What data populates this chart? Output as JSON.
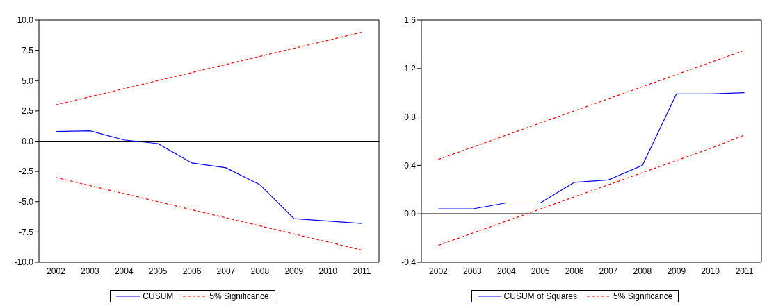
{
  "chart_data": [
    {
      "type": "line",
      "categories": [
        "2002",
        "2003",
        "2004",
        "2005",
        "2006",
        "2007",
        "2008",
        "2009",
        "2010",
        "2011"
      ],
      "series": [
        {
          "name": "CUSUM",
          "color": "#0000ff",
          "line_style": "solid",
          "values": [
            0.8,
            0.85,
            0.1,
            -0.2,
            -1.8,
            -2.2,
            -3.6,
            -6.4,
            -6.6,
            -6.8
          ]
        },
        {
          "name": "5% Significance",
          "color": "#ff0000",
          "line_style": "dashed",
          "values": [
            3.0,
            3.67,
            4.33,
            5.0,
            5.67,
            6.33,
            7.0,
            7.67,
            8.33,
            9.0
          ]
        },
        {
          "color": "#ff0000",
          "line_style": "dashed",
          "values": [
            -3.0,
            -3.67,
            -4.33,
            -5.0,
            -5.67,
            -6.33,
            -7.0,
            -7.67,
            -8.33,
            -9.0
          ]
        }
      ],
      "ylim": [
        -10,
        10
      ],
      "yticks": [
        {
          "value": -10,
          "label": "-10.0"
        },
        {
          "value": -7.5,
          "label": "-7.5"
        },
        {
          "value": -5,
          "label": "-5.0"
        },
        {
          "value": -2.5,
          "label": "-2.5"
        },
        {
          "value": 0,
          "label": "0.0"
        },
        {
          "value": 2.5,
          "label": "2.5"
        },
        {
          "value": 5,
          "label": "5.0"
        },
        {
          "value": 7.5,
          "label": "7.5"
        },
        {
          "value": 10,
          "label": "10.0"
        }
      ],
      "ref_lines": [
        {
          "axis": "y",
          "value": 0,
          "color": "#000000"
        }
      ],
      "grid": false,
      "legend": "bottom",
      "marker": "none"
    },
    {
      "type": "line",
      "categories": [
        "2002",
        "2003",
        "2004",
        "2005",
        "2006",
        "2007",
        "2008",
        "2009",
        "2010",
        "2011"
      ],
      "series": [
        {
          "name": "CUSUM  of Squares",
          "color": "#0000ff",
          "line_style": "solid",
          "values": [
            0.04,
            0.04,
            0.09,
            0.09,
            0.26,
            0.28,
            0.4,
            0.99,
            0.99,
            1.0
          ]
        },
        {
          "name": "5% Significance",
          "color": "#ff0000",
          "line_style": "dashed",
          "values": [
            0.45,
            0.55,
            0.65,
            0.75,
            0.85,
            0.95,
            1.05,
            1.15,
            1.25,
            1.35
          ]
        },
        {
          "color": "#ff0000",
          "line_style": "dashed",
          "values": [
            -0.26,
            -0.16,
            -0.06,
            0.04,
            0.14,
            0.24,
            0.34,
            0.44,
            0.54,
            0.65
          ]
        }
      ],
      "ylim": [
        -0.4,
        1.6
      ],
      "yticks": [
        {
          "value": -0.4,
          "label": "-0.4"
        },
        {
          "value": 0,
          "label": "0.0"
        },
        {
          "value": 0.4,
          "label": "0.4"
        },
        {
          "value": 0.8,
          "label": "0.8"
        },
        {
          "value": 1.2,
          "label": "1.2"
        },
        {
          "value": 1.6,
          "label": "1.6"
        }
      ],
      "ref_lines": [
        {
          "axis": "y",
          "value": 0,
          "color": "#000000"
        }
      ],
      "grid": false,
      "legend": "bottom",
      "marker": "none"
    }
  ]
}
